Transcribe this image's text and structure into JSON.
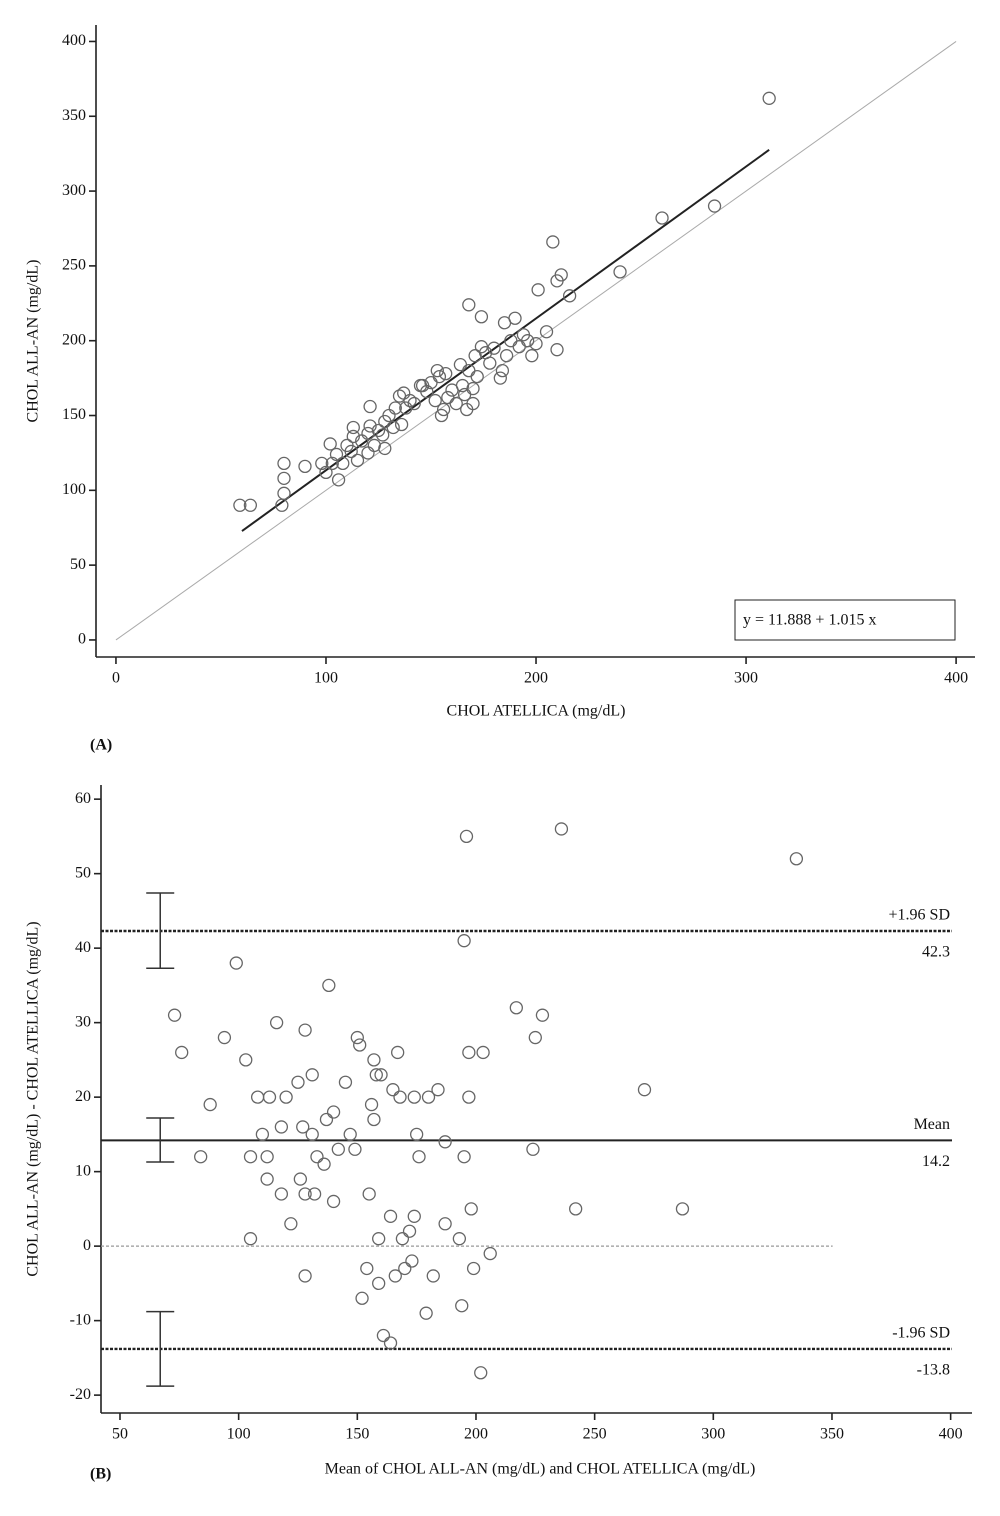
{
  "chart_data": [
    {
      "type": "scatter",
      "panel_label": "(A)",
      "x_label": "CHOL ATELLICA (mg/dL)",
      "y_label": "CHOL ALL-AN (mg/dL)",
      "xlim": [
        -9.5,
        409
      ],
      "ylim": [
        -11.4,
        411
      ],
      "xticks": [
        0,
        100,
        200,
        300,
        400
      ],
      "yticks": [
        0,
        50,
        100,
        150,
        200,
        250,
        300,
        350,
        400
      ],
      "regression": {
        "equation": "y = 11.888 + 1.015 x",
        "intercept": 11.888,
        "slope": 1.015,
        "x_range": [
          60,
          311
        ]
      },
      "identity_range": [
        0,
        400
      ],
      "x": [
        59,
        64,
        79,
        80,
        80,
        80,
        90,
        98,
        100,
        102,
        103,
        105,
        106,
        108,
        110,
        112,
        113,
        113,
        115,
        117,
        120,
        120,
        121,
        121,
        123,
        125,
        127,
        128,
        128,
        130,
        132,
        133,
        135,
        136,
        137,
        138,
        140,
        142,
        145,
        146,
        148,
        150,
        152,
        153,
        154,
        155,
        156,
        157,
        158,
        160,
        162,
        164,
        165,
        166,
        167,
        168,
        168,
        170,
        170,
        171,
        172,
        174,
        174,
        176,
        178,
        180,
        183,
        184,
        185,
        186,
        188,
        190,
        192,
        194,
        196,
        198,
        200,
        201,
        205,
        208,
        210,
        210,
        212,
        216,
        240,
        260,
        285,
        311
      ],
      "y": [
        90,
        90,
        90,
        98,
        108,
        118,
        116,
        118,
        112,
        131,
        118,
        124,
        107,
        118,
        130,
        126,
        136,
        142,
        120,
        133,
        138,
        125,
        143,
        156,
        130,
        140,
        137,
        128,
        146,
        150,
        142,
        155,
        163,
        144,
        165,
        155,
        160,
        158,
        170,
        170,
        166,
        172,
        160,
        180,
        176,
        150,
        154,
        178,
        162,
        167,
        158,
        184,
        170,
        164,
        154,
        224,
        180,
        168,
        158,
        190,
        176,
        216,
        196,
        192,
        185,
        195,
        175,
        180,
        212,
        190,
        200,
        215,
        196,
        204,
        200,
        190,
        198,
        234,
        206,
        266,
        194,
        240,
        244,
        230,
        246,
        282,
        290,
        362
      ]
    },
    {
      "type": "scatter",
      "panel_label": "(B)",
      "x_label": "Mean of CHOL ALL-AN (mg/dL) and CHOL ATELLICA (mg/dL)",
      "y_label": "CHOL ALL-AN (mg/dL) - CHOL ATELLICA (mg/dL)",
      "xlim": [
        42,
        409
      ],
      "ylim": [
        -22.4,
        61.9
      ],
      "xticks": [
        50,
        100,
        150,
        200,
        250,
        300,
        350,
        400
      ],
      "yticks": [
        -20,
        -10,
        0,
        10,
        20,
        30,
        40,
        50,
        60
      ],
      "reference_lines": [
        {
          "label": "+1.96 SD",
          "value": 42.3,
          "ci": [
            37.3,
            47.4
          ]
        },
        {
          "label": "Mean",
          "value": 14.2,
          "ci": [
            11.3,
            17.2
          ]
        },
        {
          "label": "-1.96 SD",
          "value": -13.8,
          "ci": [
            -18.8,
            -8.8
          ]
        }
      ],
      "x": [
        73,
        76,
        84,
        88,
        94,
        99,
        103,
        105,
        105,
        108,
        110,
        112,
        112,
        113,
        116,
        118,
        118,
        120,
        122,
        125,
        126,
        127,
        128,
        128,
        128,
        131,
        131,
        132,
        133,
        136,
        137,
        138,
        140,
        140,
        142,
        145,
        147,
        149,
        150,
        151,
        152,
        154,
        155,
        156,
        157,
        157,
        158,
        159,
        159,
        160,
        161,
        164,
        164,
        165,
        166,
        167,
        168,
        169,
        170,
        172,
        173,
        174,
        174,
        175,
        176,
        179,
        180,
        182,
        184,
        187,
        187,
        193,
        194,
        195,
        195,
        196,
        197,
        197,
        198,
        199,
        202,
        203,
        206,
        217,
        224,
        225,
        228,
        236,
        242,
        271,
        287,
        335
      ],
      "y": [
        31,
        26,
        12,
        19,
        28,
        38,
        25,
        12,
        1,
        20,
        15,
        12,
        9,
        20,
        30,
        7,
        16,
        20,
        3,
        22,
        9,
        16,
        29,
        7,
        -4,
        23,
        15,
        7,
        12,
        11,
        17,
        35,
        6,
        18,
        13,
        22,
        15,
        13,
        28,
        27,
        -7,
        -3,
        7,
        19,
        25,
        17,
        23,
        1,
        -5,
        23,
        -12,
        4,
        -13,
        21,
        -4,
        26,
        20,
        1,
        -3,
        2,
        -2,
        20,
        4,
        15,
        12,
        -9,
        20,
        -4,
        21,
        3,
        14,
        1,
        -8,
        41,
        12,
        55,
        20,
        26,
        5,
        -3,
        -17,
        26,
        -1,
        32,
        13,
        28,
        31,
        56,
        5,
        21,
        5,
        52
      ]
    }
  ]
}
